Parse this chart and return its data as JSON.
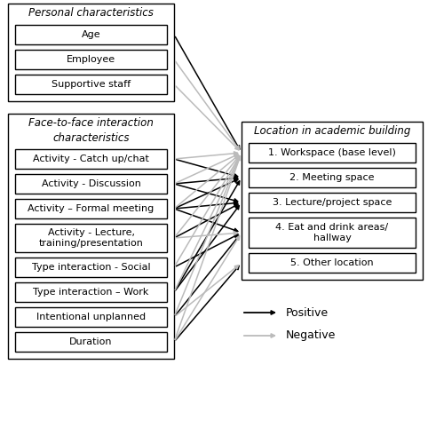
{
  "left_group1_title": "Personal characteristics",
  "left_group1_items": [
    "Age",
    "Employee",
    "Supportive staff"
  ],
  "left_group2_title": "Face-to-face interaction\ncharacteristics",
  "left_group2_items": [
    "Activity - Catch up/chat",
    "Activity - Discussion",
    "Activity – Formal meeting",
    "Activity - Lecture,\ntraining/presentation",
    "Type interaction - Social",
    "Type interaction – Work",
    "Intentional unplanned",
    "Duration"
  ],
  "right_group_title": "Location in academic building",
  "right_group_items": [
    "1. Workspace (base level)",
    "2. Meeting space",
    "3. Lecture/project space",
    "4. Eat and drink areas/\nhallway",
    "5. Other location"
  ],
  "arrows_positive": [
    [
      "Age",
      "1. Workspace (base level)"
    ],
    [
      "Activity - Catch up/chat",
      "2. Meeting space"
    ],
    [
      "Activity - Discussion",
      "2. Meeting space"
    ],
    [
      "Activity - Discussion",
      "3. Lecture/project space"
    ],
    [
      "Activity – Formal meeting",
      "2. Meeting space"
    ],
    [
      "Activity – Formal meeting",
      "3. Lecture/project space"
    ],
    [
      "Activity – Formal meeting",
      "4. Eat and drink areas/\nhallway"
    ],
    [
      "Activity - Lecture,\ntraining/presentation",
      "3. Lecture/project space"
    ],
    [
      "Type interaction - Social",
      "4. Eat and drink areas/\nhallway"
    ],
    [
      "Type interaction – Work",
      "2. Meeting space"
    ],
    [
      "Type interaction – Work",
      "3. Lecture/project space"
    ],
    [
      "Intentional unplanned",
      "4. Eat and drink areas/\nhallway"
    ],
    [
      "Duration",
      "5. Other location"
    ]
  ],
  "arrows_negative": [
    [
      "Employee",
      "1. Workspace (base level)"
    ],
    [
      "Supportive staff",
      "1. Workspace (base level)"
    ],
    [
      "Activity - Catch up/chat",
      "1. Workspace (base level)"
    ],
    [
      "Activity - Discussion",
      "1. Workspace (base level)"
    ],
    [
      "Activity – Formal meeting",
      "1. Workspace (base level)"
    ],
    [
      "Activity - Lecture,\ntraining/presentation",
      "1. Workspace (base level)"
    ],
    [
      "Activity - Lecture,\ntraining/presentation",
      "4. Eat and drink areas/\nhallway"
    ],
    [
      "Type interaction - Social",
      "1. Workspace (base level)"
    ],
    [
      "Type interaction – Work",
      "1. Workspace (base level)"
    ],
    [
      "Intentional unplanned",
      "1. Workspace (base level)"
    ],
    [
      "Intentional unplanned",
      "5. Other location"
    ],
    [
      "Duration",
      "1. Workspace (base level)"
    ],
    [
      "Duration",
      "4. Eat and drink areas/\nhallway"
    ]
  ],
  "color_positive": "#000000",
  "color_negative": "#bbbbbb",
  "background_color": "#ffffff",
  "fig_width": 4.82,
  "fig_height": 5.0,
  "dpi": 100
}
